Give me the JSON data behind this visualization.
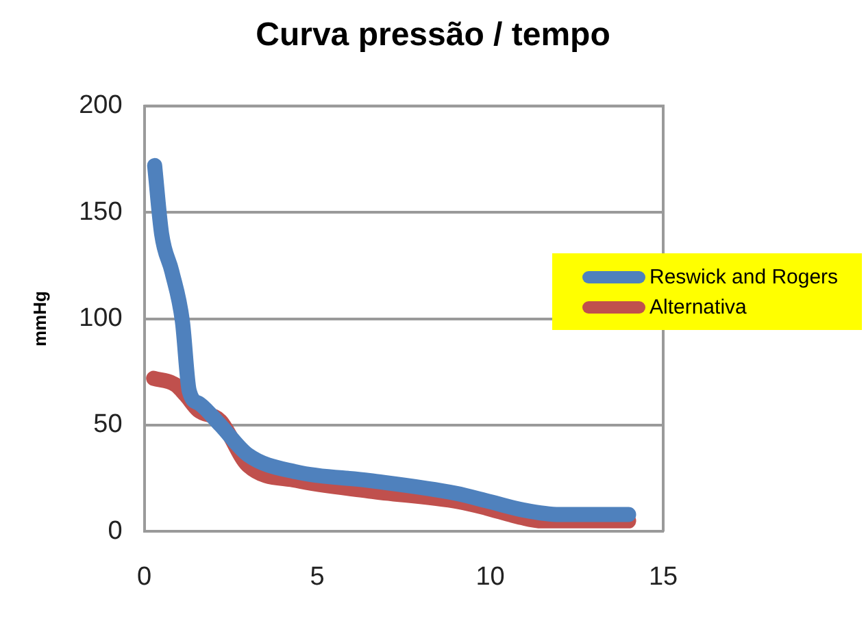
{
  "chart_data": {
    "type": "line",
    "title": "Curva pressão / tempo",
    "ylabel": "mmHg",
    "xlim": [
      0,
      15
    ],
    "xticks": [
      0,
      5,
      10,
      15
    ],
    "ylim": [
      0,
      200
    ],
    "yticks": [
      0,
      50,
      100,
      150,
      200
    ],
    "grid": "y",
    "legend": "right",
    "marker": "none",
    "line_style": "solid",
    "series": [
      {
        "name": "Reswick and Rogers",
        "color": "#4f81bd",
        "x": [
          0.3,
          0.5,
          0.8,
          1.1,
          1.3,
          1.6,
          2.2,
          3.0,
          4.4,
          6.5,
          9.0,
          10.0,
          11.0,
          12.0,
          14.0
        ],
        "values": [
          172,
          140,
          122,
          99,
          66,
          60,
          50,
          36,
          28,
          24,
          18,
          14,
          10,
          8,
          8
        ]
      },
      {
        "name": "Alternativa",
        "color": "#c0504d",
        "x": [
          0.27,
          0.9,
          1.2,
          1.56,
          2.2,
          3.0,
          4.4,
          6.5,
          9.1,
          9.9,
          10.8,
          11.5,
          14.0
        ],
        "values": [
          72,
          69,
          64,
          57,
          52,
          31,
          24,
          19,
          14,
          11,
          7,
          5,
          5
        ]
      }
    ]
  }
}
